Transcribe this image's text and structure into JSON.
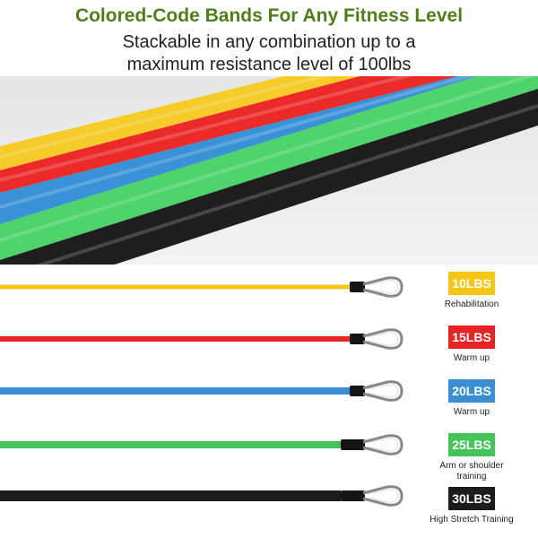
{
  "header": {
    "title": "Colored-Code Bands For Any Fitness Level",
    "title_color": "#4f7f1a",
    "subtitle_line1": "Stackable in any combination up to a",
    "subtitle_line2": "maximum resistance level of 100lbs"
  },
  "bands": [
    {
      "weight": "10LBS",
      "use": "Rehabilitation",
      "color": "#f5c518"
    },
    {
      "weight": "15LBS",
      "use": "Warm up",
      "color": "#e82323"
    },
    {
      "weight": "20LBS",
      "use": "Warm up",
      "color": "#3a8fd4"
    },
    {
      "weight": "25LBS",
      "use": "Arm or shoulder training",
      "color": "#45c45a"
    },
    {
      "weight": "30LBS",
      "use": "High Stretch Training",
      "color": "#1c1c1c"
    }
  ]
}
